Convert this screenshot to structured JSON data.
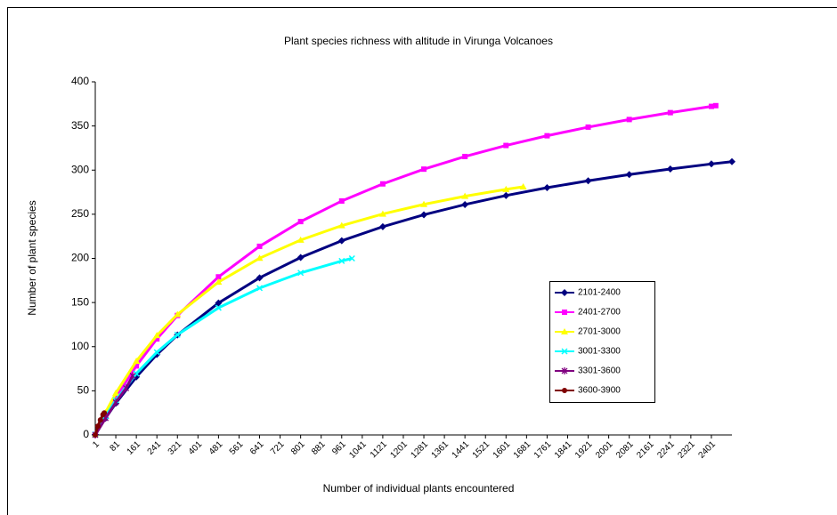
{
  "chart_data": {
    "type": "line",
    "title": "Plant species richness with altitude in Virunga Volcanoes",
    "xlabel": "Number of individual plants encountered",
    "ylabel": "Number of plant species",
    "xlim": [
      1,
      2481
    ],
    "ylim": [
      0,
      400
    ],
    "xticks": [
      1,
      81,
      161,
      241,
      321,
      401,
      481,
      561,
      641,
      721,
      801,
      881,
      961,
      1041,
      1121,
      1201,
      1281,
      1361,
      1441,
      1521,
      1601,
      1681,
      1761,
      1841,
      1921,
      2001,
      2081,
      2161,
      2241,
      2321,
      2401
    ],
    "yticks": [
      0,
      50,
      100,
      150,
      200,
      250,
      300,
      350,
      400
    ],
    "legend": "right",
    "series": [
      {
        "name": "2101-2400",
        "color": "#000080",
        "marker": "diamond",
        "x": [
          1,
          41,
          81,
          161,
          241,
          321,
          481,
          641,
          801,
          961,
          1121,
          1281,
          1441,
          1601,
          1761,
          1921,
          2081,
          2241,
          2401,
          2481
        ],
        "values": [
          0.5,
          19,
          35.9,
          65.7,
          91.2,
          113.2,
          149.5,
          178,
          201,
          220,
          235.9,
          249.4,
          261,
          271.2,
          280.1,
          287.9,
          295,
          301.3,
          307,
          309.6
        ]
      },
      {
        "name": "2401-2700",
        "color": "#ff00ff",
        "marker": "square",
        "x": [
          1,
          41,
          81,
          161,
          241,
          321,
          481,
          641,
          801,
          961,
          1121,
          1281,
          1441,
          1601,
          1761,
          1921,
          2081,
          2241,
          2401,
          2418
        ],
        "values": [
          0.6,
          22.5,
          42.6,
          78.2,
          108.8,
          135.3,
          179.1,
          213.7,
          241.7,
          265,
          284.4,
          301.1,
          315.4,
          327.9,
          338.9,
          348.7,
          357.3,
          365.1,
          372.2,
          373
        ]
      },
      {
        "name": "2701-3000",
        "color": "#ffff00",
        "marker": "triangle",
        "x": [
          1,
          41,
          81,
          161,
          241,
          321,
          481,
          641,
          801,
          961,
          1121,
          1281,
          1441,
          1601,
          1668
        ],
        "values": [
          0.7,
          25.5,
          47.3,
          83.6,
          112.7,
          136.5,
          173.2,
          200.2,
          220.8,
          237.1,
          250.3,
          261.2,
          270.4,
          278.2,
          281.1
        ]
      },
      {
        "name": "3001-3300",
        "color": "#00ffff",
        "marker": "x",
        "x": [
          1,
          41,
          81,
          161,
          241,
          321,
          481,
          641,
          801,
          961,
          1001
        ],
        "values": [
          0.6,
          21.2,
          39.3,
          69.5,
          93.7,
          113.5,
          144,
          166.4,
          183.6,
          197.1,
          200
        ]
      },
      {
        "name": "3301-3600",
        "color": "#800080",
        "marker": "star",
        "x": [
          1,
          41,
          81,
          121,
          147
        ],
        "values": [
          0,
          19,
          37,
          53,
          67
        ]
      },
      {
        "name": "3600-3900",
        "color": "#800000",
        "marker": "circle",
        "x": [
          1,
          11,
          21,
          31,
          36
        ],
        "values": [
          0,
          10,
          17,
          23,
          25
        ]
      }
    ]
  }
}
